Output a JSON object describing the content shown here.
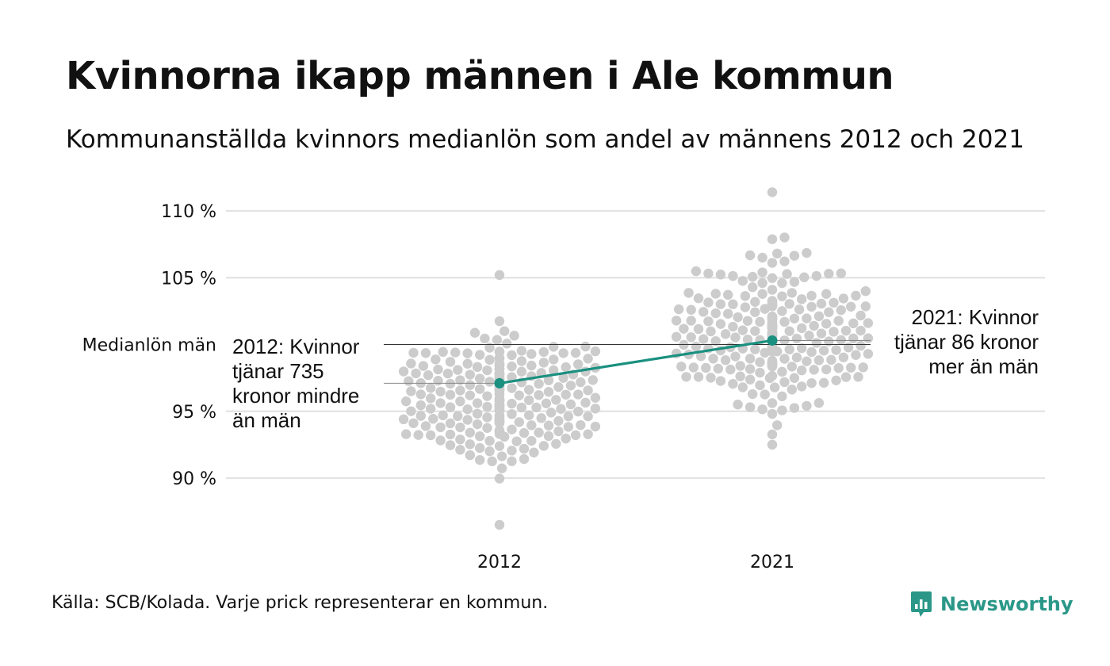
{
  "title": "Kvinnorna ikapp männen i Ale kommun",
  "subtitle": "Kommunanställda kvinnors medianlön som andel av männens 2012 och 2021",
  "footer": "Källa: SCB/Kolada. Varje prick representerar en kommun.",
  "brand": "Newsworthy",
  "colors": {
    "dots": "#cccccc",
    "highlight": "#1a9080",
    "grid": "#e3e3e3",
    "reference_line": "#333333"
  },
  "chart_data": {
    "type": "scatter",
    "subtype": "beeswarm",
    "categories": [
      "2012",
      "2021"
    ],
    "ylim": [
      86,
      111.5
    ],
    "yticks": [
      {
        "value": 90,
        "label": "90 %"
      },
      {
        "value": 95,
        "label": "95 %"
      },
      {
        "value": 105,
        "label": "105 %"
      },
      {
        "value": 110,
        "label": "110 %"
      }
    ],
    "reference": {
      "value": 100,
      "label": "Medianlön män"
    },
    "grid": true,
    "highlight": {
      "name": "Ale",
      "values": [
        97.1,
        100.3
      ]
    },
    "distributions": [
      {
        "category": "2012",
        "count": 290,
        "mean": 96.0,
        "sd": 2.3,
        "min": 86.5,
        "max": 105.2
      },
      {
        "category": "2021",
        "count": 290,
        "mean": 100.8,
        "sd": 2.6,
        "min": 92.5,
        "max": 111.4
      }
    ],
    "annotations": [
      {
        "category": "2012",
        "lines": [
          "2012: Kvinnor",
          "tjänar 735",
          "kronor mindre",
          "än män"
        ]
      },
      {
        "category": "2021",
        "lines": [
          "2021: Kvinnor",
          "tjänar 86 kronor",
          "mer än män"
        ]
      }
    ]
  }
}
